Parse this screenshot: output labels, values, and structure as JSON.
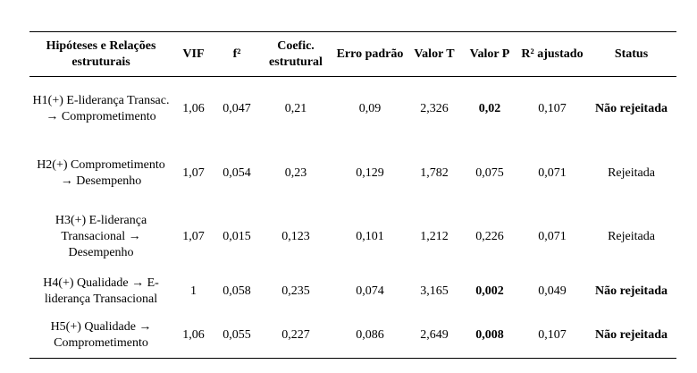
{
  "table": {
    "header": [
      "Hipóteses e Relações estruturais",
      "VIF",
      "f²",
      "Coefic. estrutural",
      "Erro padrão",
      "Valor T",
      "Valor P",
      "R² ajustado",
      "Status"
    ],
    "rows": [
      [
        "H1(+) E-liderança Transac. → Comprometimento",
        "1,06",
        "0,047",
        "0,21",
        "0,09",
        "2,326",
        "0,02",
        "0,107",
        "Não rejeitada"
      ],
      [
        "H2(+) Comprometimento → Desempenho",
        "1,07",
        "0,054",
        "0,23",
        "0,129",
        "1,782",
        "0,075",
        "0,071",
        "Rejeitada"
      ],
      [
        "H3(+) E-liderança Transacional → Desempenho",
        "1,07",
        "0,015",
        "0,123",
        "0,101",
        "1,212",
        "0,226",
        "0,071",
        "Rejeitada"
      ],
      [
        "H4(+) Qualidade → E-liderança Transacional",
        "1",
        "0,058",
        "0,235",
        "0,074",
        "3,165",
        "0,002",
        "0,049",
        "Não rejeitada"
      ],
      [
        "H5(+) Qualidade → Comprometimento",
        "1,06",
        "0,055",
        "0,227",
        "0,086",
        "2,649",
        "0,008",
        "0,107",
        "Não rejeitada"
      ]
    ]
  }
}
